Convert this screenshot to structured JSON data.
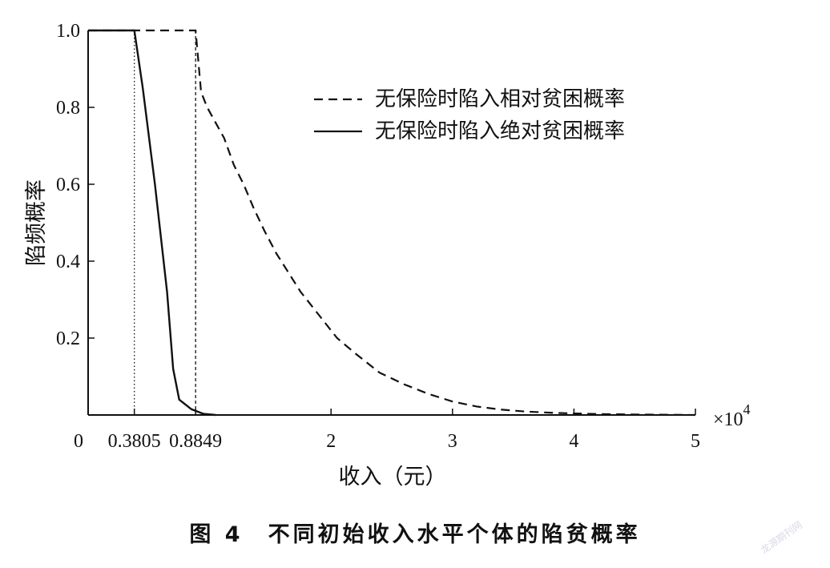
{
  "chart_data": {
    "type": "line",
    "xlabel": "收入（元）",
    "ylabel": "陷频概率",
    "x_multiplier_label": "×10",
    "x_multiplier_exp": "4",
    "xlim": [
      0,
      5
    ],
    "ylim": [
      0,
      1
    ],
    "x_ticks": [
      {
        "value": 0,
        "label": "0"
      },
      {
        "value": 0.3805,
        "label": "0.3805"
      },
      {
        "value": 0.8849,
        "label": "0.8849"
      },
      {
        "value": 2,
        "label": "2"
      },
      {
        "value": 3,
        "label": "3"
      },
      {
        "value": 4,
        "label": "4"
      },
      {
        "value": 5,
        "label": "5"
      }
    ],
    "y_ticks": [
      {
        "value": 0.2,
        "label": "0.2"
      },
      {
        "value": 0.4,
        "label": "0.4"
      },
      {
        "value": 0.6,
        "label": "0.6"
      },
      {
        "value": 0.8,
        "label": "0.8"
      },
      {
        "value": 1.0,
        "label": "1.0"
      }
    ],
    "reference_lines": [
      {
        "x": 0.3805,
        "style": "dotted"
      },
      {
        "x": 0.8849,
        "style": "dashed"
      }
    ],
    "legend_position": "top-right",
    "series": [
      {
        "name": "无保险时陷入相对贫困概率",
        "style": "dashed",
        "x": [
          0,
          0.8849,
          0.8849,
          0.93,
          0.98,
          1.05,
          1.12,
          1.2,
          1.28,
          1.36,
          1.45,
          1.55,
          1.65,
          1.75,
          1.85,
          1.95,
          2.05,
          2.2,
          2.4,
          2.6,
          2.8,
          3.0,
          3.2,
          3.4,
          3.6,
          3.8,
          4.0,
          4.3,
          4.6,
          5.0
        ],
        "y": [
          1.0,
          1.0,
          1.0,
          0.84,
          0.8,
          0.76,
          0.72,
          0.65,
          0.6,
          0.54,
          0.48,
          0.42,
          0.37,
          0.32,
          0.28,
          0.24,
          0.2,
          0.16,
          0.11,
          0.08,
          0.055,
          0.035,
          0.022,
          0.014,
          0.009,
          0.006,
          0.004,
          0.002,
          0.001,
          0.0
        ]
      },
      {
        "name": "无保险时陷入绝对贫困概率",
        "style": "solid",
        "x": [
          0,
          0.3805,
          0.3805,
          0.45,
          0.55,
          0.65,
          0.7,
          0.75,
          0.85,
          0.95,
          1.05
        ],
        "y": [
          1.0,
          1.0,
          1.0,
          0.85,
          0.6,
          0.32,
          0.12,
          0.04,
          0.015,
          0.003,
          0.0
        ]
      }
    ]
  },
  "caption": "图 4　不同初始收入水平个体的陷贫概率",
  "watermark": "龙源期刊网"
}
